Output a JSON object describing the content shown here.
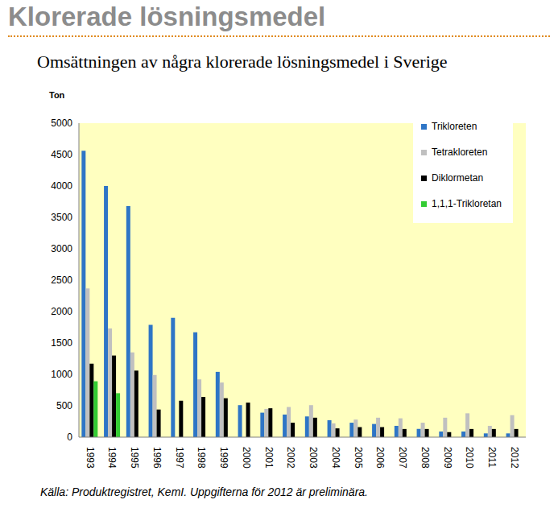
{
  "header": "Klorerade lösningsmedel",
  "chart_data": {
    "type": "bar",
    "title": "Omsättningen av några klorerade lösningsmedel i Sverige",
    "y_label": "Ton",
    "categories": [
      "1993",
      "1994",
      "1995",
      "1996",
      "1997",
      "1998",
      "1999",
      "2000",
      "2001",
      "2002",
      "2003",
      "2004",
      "2005",
      "2006",
      "2007",
      "2008",
      "2009",
      "2010",
      "2011",
      "2012"
    ],
    "series": [
      {
        "name": "Trikloreten",
        "color": "#2e75c6",
        "values": [
          4560,
          4000,
          3680,
          1790,
          1900,
          1670,
          1040,
          510,
          390,
          360,
          330,
          270,
          230,
          210,
          180,
          130,
          90,
          90,
          60,
          60
        ]
      },
      {
        "name": "Tetrakloreten",
        "color": "#c0c0c0",
        "values": [
          2370,
          1730,
          1350,
          990,
          null,
          920,
          870,
          null,
          450,
          480,
          510,
          220,
          280,
          310,
          300,
          230,
          310,
          380,
          180,
          350
        ]
      },
      {
        "name": "Diklormetan",
        "color": "#000000",
        "values": [
          1170,
          1300,
          1060,
          440,
          580,
          640,
          620,
          550,
          460,
          230,
          310,
          140,
          160,
          160,
          130,
          130,
          80,
          130,
          130,
          130
        ]
      },
      {
        "name": "1,1,1-Trikloretan",
        "color": "#33cc33",
        "values": [
          890,
          700,
          null,
          null,
          null,
          null,
          null,
          null,
          null,
          null,
          null,
          null,
          null,
          null,
          null,
          null,
          null,
          null,
          null,
          null
        ]
      }
    ],
    "ylim": [
      0,
      5000
    ],
    "yticks": [
      0,
      500,
      1000,
      1500,
      2000,
      2500,
      3000,
      3500,
      4000,
      4500,
      5000
    ],
    "grid": false,
    "legend": "top-right"
  },
  "source": "Källa: Produktregistret, KemI. Uppgifterna för 2012 är preliminära."
}
